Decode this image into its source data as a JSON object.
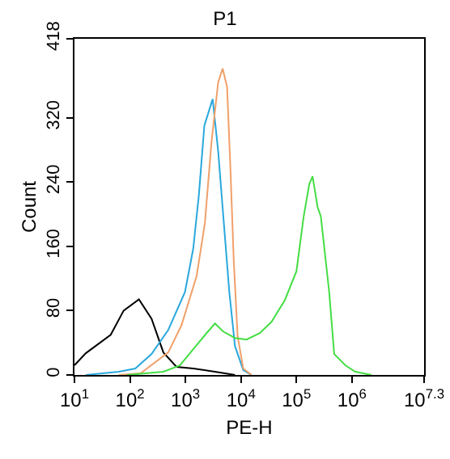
{
  "chart_data": {
    "type": "line",
    "title": "P1",
    "xlabel": "PE-H",
    "ylabel": "Count",
    "log": "x",
    "grid": false,
    "marker": "none",
    "line_style": "solid",
    "xlim": [
      10,
      19952623
    ],
    "ylim": [
      0,
      418
    ],
    "xticks": [
      {
        "value": 10,
        "label": "10$^{1}$"
      },
      {
        "value": 100,
        "label": "10$^{2}$"
      },
      {
        "value": 1000,
        "label": "10$^{3}$"
      },
      {
        "value": 10000,
        "label": "10$^{4}$"
      },
      {
        "value": 100000,
        "label": "10$^{5}$"
      },
      {
        "value": 1000000,
        "label": "10$^{6}$"
      },
      {
        "value": 19952623,
        "label": "10$^{7.3}$"
      }
    ],
    "yticks": [
      0,
      80,
      160,
      240,
      320,
      418
    ],
    "series": [
      {
        "color": "#000000",
        "x": [
          10,
          16,
          45,
          77,
          145,
          245,
          400,
          690,
          1380,
          3400,
          7800
        ],
        "values": [
          12,
          27,
          50,
          80,
          94,
          70,
          28,
          10,
          8,
          4,
          0
        ]
      },
      {
        "color": "#2aa8dc",
        "x": [
          16,
          63,
          125,
          245,
          490,
          980,
          1380,
          1740,
          2190,
          3090,
          3890,
          4900,
          6170,
          7800,
          11000,
          15500
        ],
        "values": [
          0,
          4,
          8,
          26,
          56,
          103,
          157,
          223,
          310,
          343,
          278,
          190,
          103,
          36,
          6,
          0
        ]
      },
      {
        "color": "#f0a06a",
        "x": [
          63,
          155,
          490,
          850,
          1590,
          2240,
          2950,
          3890,
          4680,
          5620,
          6460,
          7410,
          8710,
          11000,
          15500
        ],
        "values": [
          0,
          2,
          28,
          62,
          123,
          189,
          290,
          364,
          381,
          358,
          257,
          143,
          48,
          8,
          0
        ]
      },
      {
        "color": "#44dd44",
        "x": [
          89,
          400,
          794,
          1380,
          2400,
          3400,
          4790,
          7800,
          12600,
          21900,
          35500,
          61700,
          100000,
          135000,
          170000,
          195000,
          240000,
          275000,
          389000,
          479000,
          759000,
          1150000,
          2240000
        ],
        "values": [
          0,
          4,
          12,
          32,
          52,
          64,
          54,
          46,
          44,
          52,
          66,
          93,
          129,
          197,
          237,
          247,
          209,
          197,
          103,
          26,
          12,
          4,
          0
        ]
      }
    ]
  }
}
